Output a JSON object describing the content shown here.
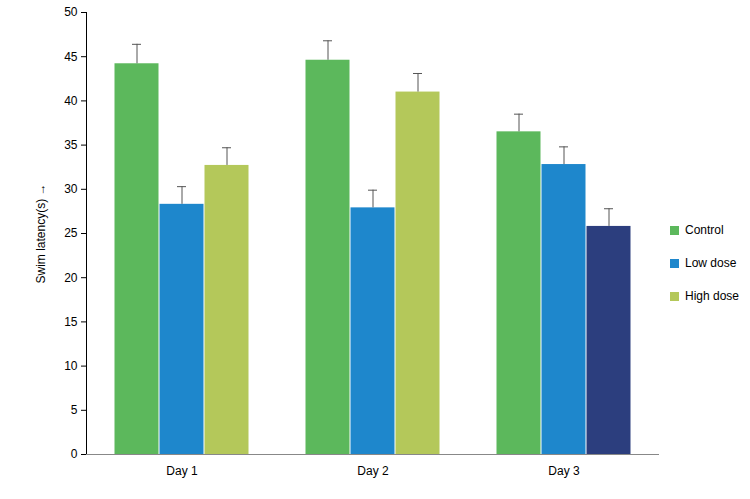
{
  "chart_data": {
    "type": "bar",
    "y_label": "Swim latency(s)",
    "categories": [
      "Day 1",
      "Day 2",
      "Day 3"
    ],
    "series": [
      {
        "name": "Control",
        "color": "#5cb85c",
        "values": [
          44.2,
          44.6,
          36.5
        ],
        "errors": [
          2.2,
          2.2,
          2.0
        ]
      },
      {
        "name": "Low dose",
        "color": "#1e87cc",
        "values": [
          28.3,
          27.9,
          32.8
        ],
        "errors": [
          2.0,
          2.0,
          2.0
        ]
      },
      {
        "name": "High dose",
        "color": "#b4c85a",
        "colors": [
          "#b4c85a",
          "#b4c85a",
          "#2c3e7e"
        ],
        "values": [
          32.7,
          41.0,
          25.8
        ],
        "errors": [
          2.0,
          2.1,
          2.0
        ]
      }
    ],
    "ylim": [
      0,
      50
    ],
    "yticks": [
      0,
      5,
      10,
      15,
      20,
      25,
      30,
      35,
      40,
      45,
      50
    ],
    "legend": "right"
  }
}
